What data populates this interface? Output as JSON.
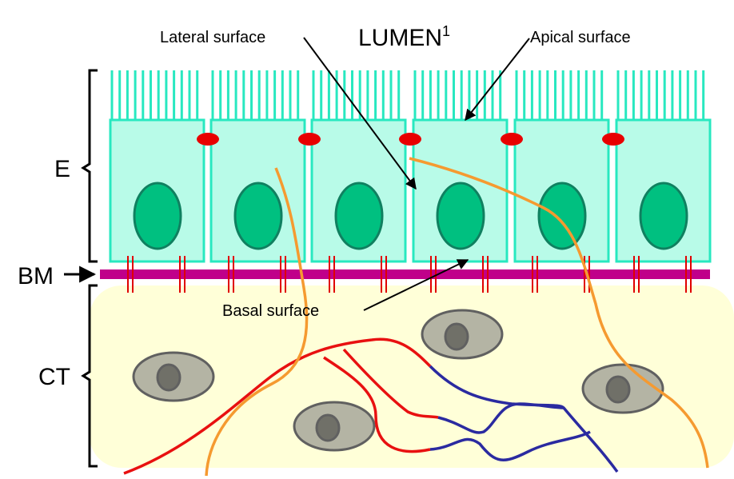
{
  "labels": {
    "lumen": "LUMEN",
    "lumen_superscript": "1",
    "lateral": "Lateral surface",
    "apical": "Apical surface",
    "basal": "Basal surface",
    "epithelium": "E",
    "basement_membrane": "BM",
    "connective_tissue": "CT"
  }
}
